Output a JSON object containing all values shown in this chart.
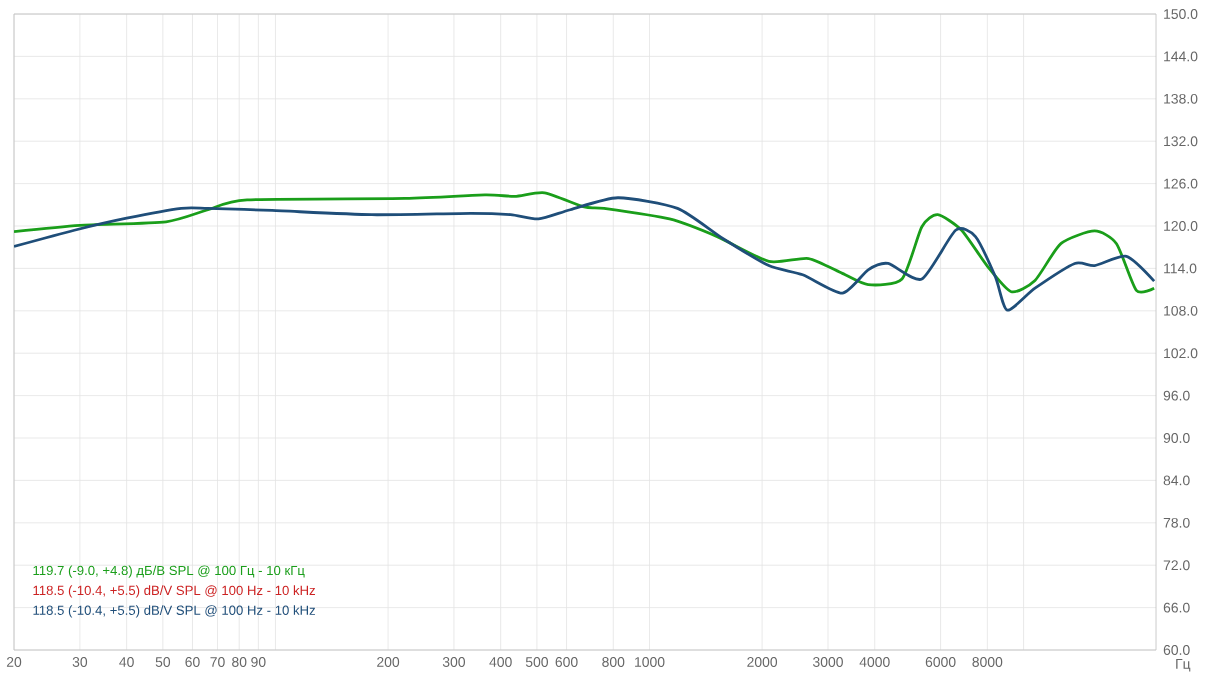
{
  "chart_data": {
    "type": "line",
    "xlabel": "Гц",
    "log": "x",
    "grid": true,
    "legend": "bottom left",
    "line_style": "solid",
    "marker": "none",
    "xlim": [
      20,
      22600
    ],
    "ylim": [
      60,
      150
    ],
    "xticks": [
      20,
      30,
      40,
      50,
      60,
      70,
      80,
      90,
      {
        "value": 100,
        "label": null
      },
      200,
      300,
      400,
      500,
      600,
      800,
      1000,
      2000,
      3000,
      4000,
      6000,
      8000,
      {
        "value": 10000,
        "label": null
      }
    ],
    "yticks": [
      {
        "value": 60,
        "label": "60.0"
      },
      {
        "value": 66,
        "label": "66.0"
      },
      {
        "value": 72,
        "label": "72.0"
      },
      {
        "value": 78,
        "label": "78.0"
      },
      {
        "value": 84,
        "label": "84.0"
      },
      {
        "value": 90,
        "label": "90.0"
      },
      {
        "value": 96,
        "label": "96.0"
      },
      {
        "value": 102,
        "label": "102.0"
      },
      {
        "value": 108,
        "label": "108.0"
      },
      {
        "value": 114,
        "label": "114.0"
      },
      {
        "value": 120,
        "label": "120.0"
      },
      {
        "value": 126,
        "label": "126.0"
      },
      {
        "value": 132,
        "label": "132.0"
      },
      {
        "value": 138,
        "label": "138.0"
      },
      {
        "value": 144,
        "label": "144.0"
      },
      {
        "value": 150,
        "label": "150.0"
      }
    ],
    "series": [
      {
        "name": "119.7 (-9.0, +4.8) дБ/В SPL @ 100 Гц - 10 кГц",
        "color": "#1a9e1a",
        "x": [
          20,
          30,
          51,
          66,
          84,
          222,
          363,
          436,
          524,
          669,
          756,
          1131,
          1517,
          2084,
          2662,
          3278,
          3842,
          4731,
          5346,
          5896,
          6828,
          8008,
          9268,
          10730,
          12580,
          15490,
          17720,
          20020,
          22340
        ],
        "values": [
          119.2,
          120.1,
          120.6,
          122.3,
          123.7,
          123.9,
          124.4,
          124.2,
          124.7,
          122.7,
          122.5,
          121.0,
          118.5,
          115.0,
          115.4,
          113.3,
          111.7,
          112.5,
          119.9,
          121.6,
          119.4,
          114.3,
          110.7,
          112.3,
          117.5,
          119.3,
          117.5,
          110.9,
          111.2
        ]
      },
      {
        "name": "118.5 (-10.4, +5.5) dB/V SPL @ 100 Hz - 10 kHz",
        "color": "#cc2222"
      },
      {
        "name": "118.5 (-10.4, +5.5) dB/V SPL @ 100 Hz - 10 kHz",
        "color": "#1f4e79",
        "x": [
          20,
          29,
          40,
          56,
          66,
          98,
          181,
          333,
          425,
          505,
          614,
          823,
          1188,
          1574,
          2084,
          2567,
          3278,
          3842,
          4343,
          5346,
          6582,
          7438,
          8409,
          9045,
          10730,
          13710,
          15490,
          18840,
          22340
        ],
        "values": [
          117.1,
          119.4,
          121.1,
          122.5,
          122.5,
          122.2,
          121.6,
          121.8,
          121.6,
          121.0,
          122.3,
          124.0,
          122.5,
          118.2,
          114.4,
          113.1,
          110.5,
          113.8,
          114.7,
          112.5,
          119.4,
          118.5,
          112.8,
          108.1,
          111.2,
          114.7,
          114.4,
          115.7,
          112.2
        ]
      }
    ]
  }
}
